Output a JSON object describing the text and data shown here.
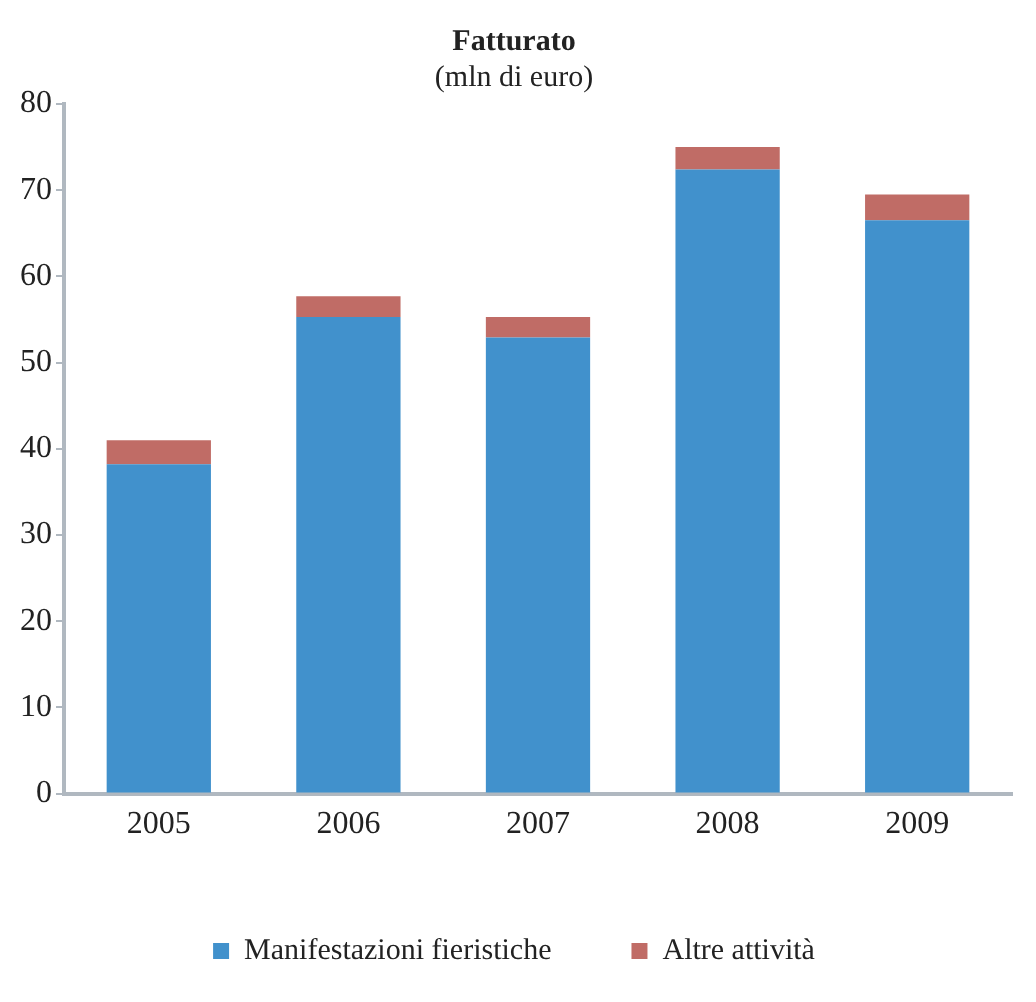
{
  "chart_data": {
    "type": "bar",
    "title": "Fatturato",
    "subtitle": "(mln di euro)",
    "categories": [
      "2005",
      "2006",
      "2007",
      "2008",
      "2009"
    ],
    "stacked": true,
    "series": [
      {
        "name": "Manifestazioni fieristiche",
        "color": "#4191cc",
        "values": [
          38.2,
          55.3,
          52.9,
          72.4,
          66.5
        ]
      },
      {
        "name": "Altre attività",
        "color": "#c06c66",
        "values": [
          2.8,
          2.4,
          2.4,
          2.6,
          3.0
        ]
      }
    ],
    "ylim": [
      0,
      80
    ],
    "yticks": [
      0,
      10,
      20,
      30,
      40,
      50,
      60,
      70,
      80
    ],
    "grid": false,
    "legend": "bottom"
  }
}
